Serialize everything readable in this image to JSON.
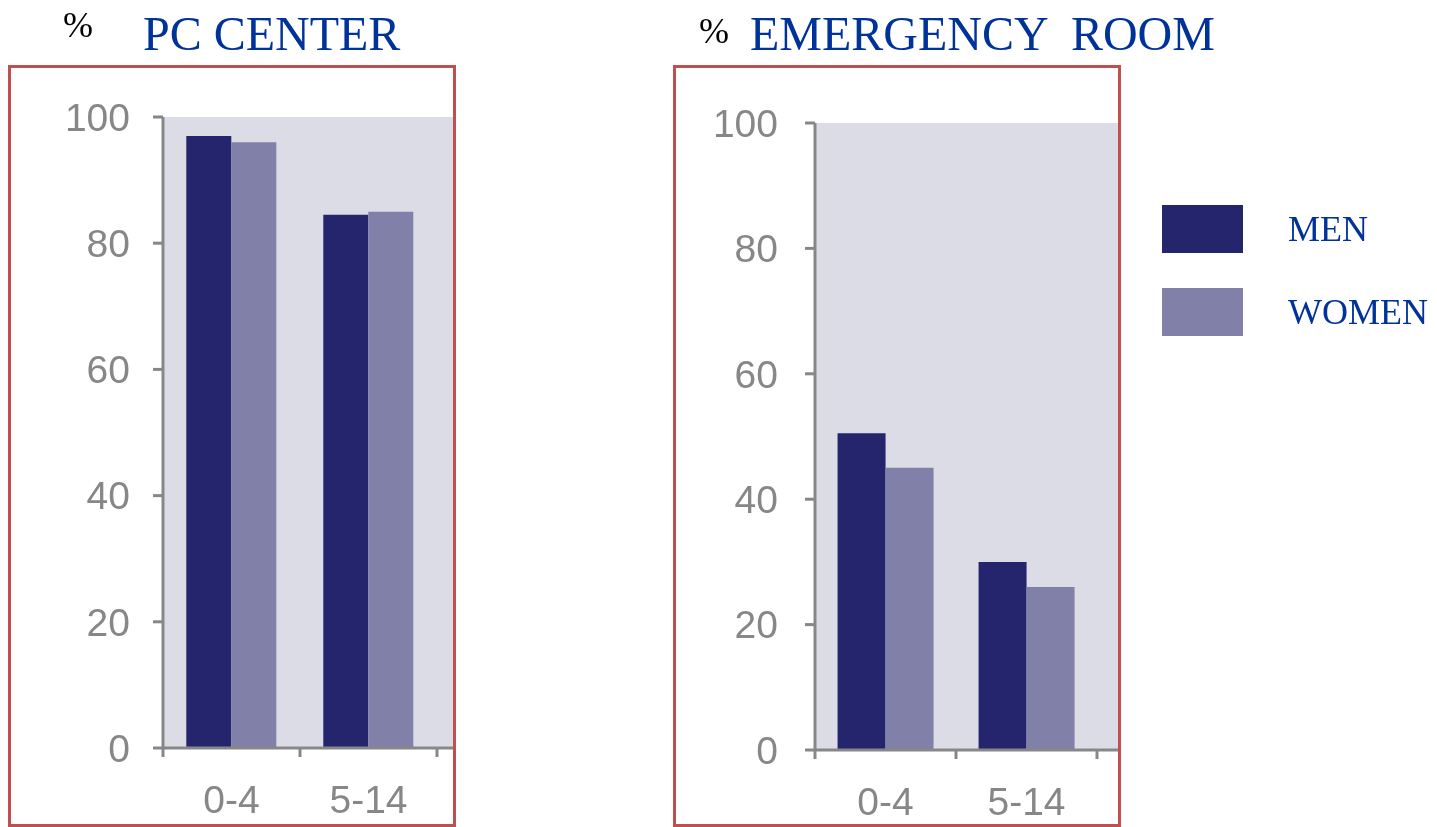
{
  "chart_data": [
    {
      "type": "bar",
      "title": "PC CENTER",
      "ylabel": "%",
      "categories": [
        "0-4",
        "5-14"
      ],
      "series": [
        {
          "color": "#25256e",
          "values": [
            97,
            84.5
          ]
        },
        {
          "color": "#8080a8",
          "values": [
            96,
            85
          ]
        }
      ],
      "ylim": [
        0,
        100
      ],
      "yticks": [
        0,
        20,
        40,
        60,
        80,
        100
      ]
    },
    {
      "type": "bar",
      "title": "EMERGENCY  ROOM",
      "ylabel": "%",
      "categories": [
        "0-4",
        "5-14"
      ],
      "series": [
        {
          "name": "MEN",
          "color": "#25256e",
          "values": [
            50.5,
            30
          ]
        },
        {
          "name": "WOMEN",
          "color": "#8080a8",
          "values": [
            45,
            26
          ]
        }
      ],
      "ylim": [
        0,
        100
      ],
      "yticks": [
        0,
        20,
        40,
        60,
        80,
        100
      ],
      "legend": "right"
    }
  ]
}
